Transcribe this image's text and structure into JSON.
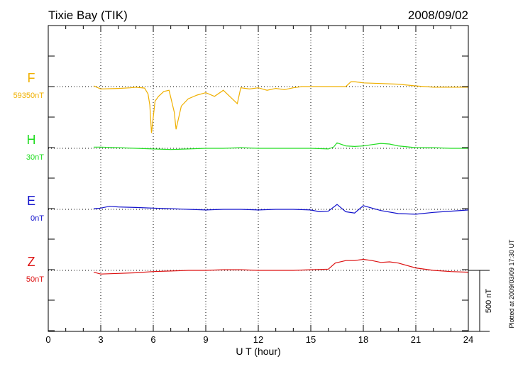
{
  "title": "Tixie Bay (TIK)",
  "date": "2008/09/02",
  "xlabel": "U T (hour)",
  "scale_label": "500 nT",
  "plotted_note": "Plotted at 2009/03/09 17:30 UT",
  "colors": {
    "F": "#f0b000",
    "H": "#22dd22",
    "E": "#1010cc",
    "Z": "#dd1111",
    "axis": "#000000"
  },
  "chart_data": {
    "type": "line",
    "title": "Tixie Bay (TIK)",
    "xlabel": "U T (hour)",
    "ylabel": "",
    "xlim": [
      0,
      24
    ],
    "x_ticks": [
      0,
      3,
      6,
      9,
      12,
      15,
      18,
      21,
      24
    ],
    "x_tick_labels": [
      "0",
      "3",
      "6",
      "9",
      "12",
      "15",
      "18",
      "21",
      "24"
    ],
    "grid": "dotted vertical at 3h intervals and dotted baselines for each trace",
    "scale_bar_nT": 500,
    "series": [
      {
        "name": "F",
        "baseline_label": "59350nT",
        "x": [
          2.6,
          3.0,
          4.0,
          4.7,
          5.0,
          5.5,
          5.7,
          5.8,
          5.9,
          6.0,
          6.1,
          6.3,
          6.6,
          6.9,
          7.0,
          7.2,
          7.3,
          7.6,
          8.0,
          8.5,
          9.0,
          9.5,
          10.0,
          10.8,
          11.0,
          11.5,
          12.0,
          12.5,
          13.0,
          13.5,
          14.0,
          14.5,
          15.0,
          16.0,
          17.0,
          17.3,
          17.5,
          18.0,
          19.0,
          20.0,
          21.0,
          22.0,
          23.0,
          24.0
        ],
        "y": [
          -5,
          20,
          15,
          10,
          5,
          12,
          60,
          150,
          380,
          250,
          120,
          80,
          40,
          30,
          90,
          210,
          350,
          160,
          100,
          70,
          50,
          80,
          30,
          140,
          10,
          20,
          10,
          30,
          15,
          25,
          10,
          0,
          0,
          0,
          0,
          -40,
          -40,
          -30,
          -25,
          -20,
          -5,
          5,
          5,
          5
        ]
      },
      {
        "name": "H",
        "baseline_label": "30nT",
        "x": [
          2.6,
          3.0,
          4.0,
          5.0,
          6.0,
          7.0,
          8.0,
          9.0,
          10.0,
          11.0,
          12.0,
          13.0,
          14.0,
          15.0,
          16.0,
          16.3,
          16.5,
          17.0,
          17.5,
          18.0,
          18.5,
          19.0,
          19.5,
          20.0,
          21.0,
          22.0,
          23.0,
          24.0
        ],
        "y": [
          -10,
          -10,
          -5,
          0,
          5,
          10,
          5,
          0,
          0,
          -5,
          0,
          0,
          0,
          0,
          5,
          -10,
          -45,
          -20,
          -15,
          -20,
          -30,
          -40,
          -35,
          -20,
          -5,
          -5,
          0,
          0
        ]
      },
      {
        "name": "E",
        "baseline_label": "0nT",
        "x": [
          2.6,
          3.0,
          3.5,
          4.0,
          5.0,
          6.0,
          7.0,
          8.0,
          9.0,
          10.0,
          11.0,
          12.0,
          13.0,
          14.0,
          15.0,
          15.5,
          16.0,
          16.5,
          17.0,
          17.5,
          18.0,
          18.5,
          19.0,
          20.0,
          21.0,
          22.0,
          23.0,
          24.0
        ],
        "y": [
          -5,
          -10,
          -25,
          -20,
          -15,
          -10,
          -5,
          0,
          5,
          0,
          0,
          5,
          0,
          0,
          5,
          20,
          15,
          -40,
          20,
          30,
          -30,
          -10,
          10,
          35,
          40,
          25,
          15,
          5
        ]
      },
      {
        "name": "Z",
        "baseline_label": "50nT",
        "x": [
          2.6,
          3.0,
          4.0,
          5.0,
          6.0,
          7.0,
          8.0,
          9.0,
          10.0,
          11.0,
          12.0,
          13.0,
          14.0,
          15.0,
          16.0,
          16.4,
          17.0,
          17.5,
          18.0,
          18.5,
          19.0,
          19.5,
          20.0,
          21.0,
          22.0,
          23.0,
          24.0
        ],
        "y": [
          15,
          30,
          25,
          20,
          10,
          5,
          0,
          0,
          -5,
          -5,
          0,
          0,
          0,
          -5,
          -10,
          -60,
          -80,
          -80,
          -90,
          -80,
          -65,
          -70,
          -60,
          -20,
          0,
          10,
          15
        ]
      }
    ]
  }
}
